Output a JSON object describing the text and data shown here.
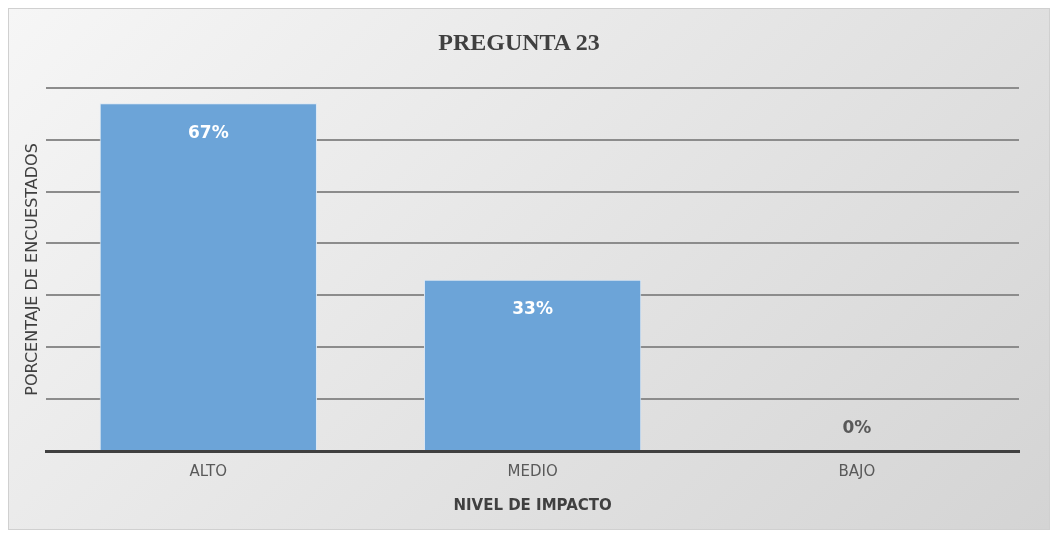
{
  "chart_data": {
    "type": "bar",
    "title": "PREGUNTA 23",
    "xlabel": "NIVEL DE IMPACTO",
    "ylabel": "PORCENTAJE DE ENCUESTADOS",
    "categories": [
      "ALTO",
      "MEDIO",
      "BAJO"
    ],
    "values": [
      67,
      33,
      0
    ],
    "value_labels": [
      "67%",
      "33%",
      "0%"
    ],
    "color": "#6ca4d8",
    "ylim": [
      0,
      70
    ],
    "yticks": [
      {
        "value": 0,
        "label": null
      },
      {
        "value": 10,
        "label": null
      },
      {
        "value": 20,
        "label": null
      },
      {
        "value": 30,
        "label": null
      },
      {
        "value": 40,
        "label": null
      },
      {
        "value": 50,
        "label": null
      },
      {
        "value": 60,
        "label": null
      },
      {
        "value": 70,
        "label": null
      }
    ],
    "grid": "y",
    "tick_labels": "x",
    "legend": false
  }
}
